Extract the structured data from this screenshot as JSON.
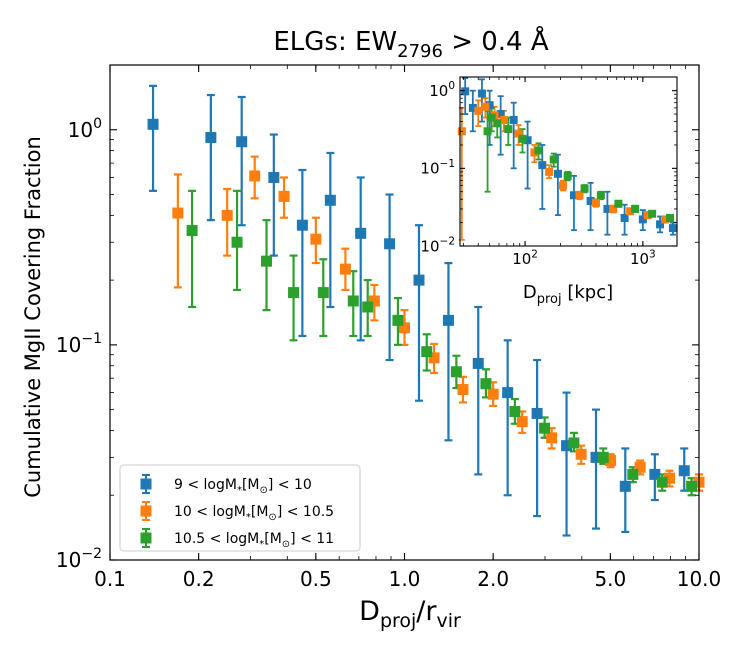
{
  "chart_data": [
    {
      "type": "scatter",
      "title": "ELGs: EW",
      "title_sub": "2796",
      "title_rest": " > 0.4 Å",
      "xlabel": "D",
      "xlabel_sub": "proj",
      "xlabel_mid": "/r",
      "xlabel_sub2": "vir",
      "ylabel": "Cumulative MgII Covering Fraction",
      "xscale": "log",
      "yscale": "log",
      "xlim": [
        0.1,
        10.0
      ],
      "ylim": [
        0.01,
        2.0
      ],
      "xticks": [
        {
          "value": 0.1,
          "label": "0.1"
        },
        {
          "value": 0.2,
          "label": "0.2"
        },
        {
          "value": 0.5,
          "label": "0.5"
        },
        {
          "value": 1.0,
          "label": "1.0"
        },
        {
          "value": 2.0,
          "label": "2.0"
        },
        {
          "value": 5.0,
          "label": "5.0"
        },
        {
          "value": 10.0,
          "label": "10.0"
        }
      ],
      "yticks": [
        {
          "value": 1,
          "base": "10",
          "exp": "0"
        },
        {
          "value": 0.1,
          "base": "10",
          "exp": "−1"
        },
        {
          "value": 0.01,
          "base": "10",
          "exp": "−2"
        }
      ],
      "legend_position": "lower-left",
      "series": [
        {
          "name_pre": "9 < logM",
          "name_sub1": "*",
          "name_mid": "[M",
          "name_sub2": "⊙",
          "name_post": "] < 10",
          "color": "#1f77b4",
          "points": [
            {
              "x": 0.14,
              "y": 1.06,
              "ylo": 0.52,
              "yhi": 1.6
            },
            {
              "x": 0.22,
              "y": 0.92,
              "ylo": 0.38,
              "yhi": 1.45
            },
            {
              "x": 0.28,
              "y": 0.88,
              "ylo": 0.36,
              "yhi": 1.42
            },
            {
              "x": 0.36,
              "y": 0.6,
              "ylo": 0.26,
              "yhi": 0.95
            },
            {
              "x": 0.45,
              "y": 0.36,
              "ylo": 0.11,
              "yhi": 0.65
            },
            {
              "x": 0.56,
              "y": 0.47,
              "ylo": 0.15,
              "yhi": 0.78
            },
            {
              "x": 0.71,
              "y": 0.33,
              "ylo": 0.105,
              "yhi": 0.6
            },
            {
              "x": 0.89,
              "y": 0.295,
              "ylo": 0.085,
              "yhi": 0.5
            },
            {
              "x": 1.12,
              "y": 0.2,
              "ylo": 0.055,
              "yhi": 0.36
            },
            {
              "x": 1.41,
              "y": 0.13,
              "ylo": 0.036,
              "yhi": 0.24
            },
            {
              "x": 1.78,
              "y": 0.082,
              "ylo": 0.025,
              "yhi": 0.15
            },
            {
              "x": 2.24,
              "y": 0.06,
              "ylo": 0.02,
              "yhi": 0.105
            },
            {
              "x": 2.82,
              "y": 0.048,
              "ylo": 0.016,
              "yhi": 0.085
            },
            {
              "x": 3.55,
              "y": 0.034,
              "ylo": 0.013,
              "yhi": 0.06
            },
            {
              "x": 4.47,
              "y": 0.03,
              "ylo": 0.014,
              "yhi": 0.05
            },
            {
              "x": 5.62,
              "y": 0.022,
              "ylo": 0.0135,
              "yhi": 0.033
            },
            {
              "x": 7.08,
              "y": 0.025,
              "ylo": 0.019,
              "yhi": 0.031
            },
            {
              "x": 8.91,
              "y": 0.026,
              "ylo": 0.021,
              "yhi": 0.033
            }
          ]
        },
        {
          "name_pre": "10 < logM",
          "name_sub1": "*",
          "name_mid": "[M",
          "name_sub2": "⊙",
          "name_post": "] < 10.5",
          "color": "#ff7f0e",
          "points": [
            {
              "x": 0.17,
              "y": 0.41,
              "ylo": 0.185,
              "yhi": 0.62
            },
            {
              "x": 0.25,
              "y": 0.4,
              "ylo": 0.26,
              "yhi": 0.53
            },
            {
              "x": 0.31,
              "y": 0.61,
              "ylo": 0.48,
              "yhi": 0.75
            },
            {
              "x": 0.39,
              "y": 0.49,
              "ylo": 0.39,
              "yhi": 0.6
            },
            {
              "x": 0.5,
              "y": 0.31,
              "ylo": 0.24,
              "yhi": 0.39
            },
            {
              "x": 0.63,
              "y": 0.225,
              "ylo": 0.18,
              "yhi": 0.28
            },
            {
              "x": 0.79,
              "y": 0.16,
              "ylo": 0.13,
              "yhi": 0.19
            },
            {
              "x": 1.0,
              "y": 0.12,
              "ylo": 0.1,
              "yhi": 0.145
            },
            {
              "x": 1.26,
              "y": 0.087,
              "ylo": 0.074,
              "yhi": 0.101
            },
            {
              "x": 1.58,
              "y": 0.062,
              "ylo": 0.054,
              "yhi": 0.071
            },
            {
              "x": 2.0,
              "y": 0.059,
              "ylo": 0.052,
              "yhi": 0.067
            },
            {
              "x": 2.51,
              "y": 0.044,
              "ylo": 0.039,
              "yhi": 0.049
            },
            {
              "x": 3.16,
              "y": 0.037,
              "ylo": 0.033,
              "yhi": 0.041
            },
            {
              "x": 3.98,
              "y": 0.031,
              "ylo": 0.028,
              "yhi": 0.034
            },
            {
              "x": 5.01,
              "y": 0.029,
              "ylo": 0.027,
              "yhi": 0.031
            },
            {
              "x": 6.31,
              "y": 0.027,
              "ylo": 0.025,
              "yhi": 0.029
            },
            {
              "x": 7.94,
              "y": 0.024,
              "ylo": 0.022,
              "yhi": 0.026
            },
            {
              "x": 10.0,
              "y": 0.023,
              "ylo": 0.021,
              "yhi": 0.025
            }
          ]
        },
        {
          "name_pre": "10.5 < logM",
          "name_sub1": "*",
          "name_mid": "[M",
          "name_sub2": "⊙",
          "name_post": "] < 11",
          "color": "#2ca02c",
          "points": [
            {
              "x": 0.19,
              "y": 0.34,
              "ylo": 0.15,
              "yhi": 0.52
            },
            {
              "x": 0.27,
              "y": 0.3,
              "ylo": 0.18,
              "yhi": 0.52
            },
            {
              "x": 0.34,
              "y": 0.245,
              "ylo": 0.145,
              "yhi": 0.38
            },
            {
              "x": 0.42,
              "y": 0.175,
              "ylo": 0.105,
              "yhi": 0.26
            },
            {
              "x": 0.53,
              "y": 0.175,
              "ylo": 0.11,
              "yhi": 0.25
            },
            {
              "x": 0.67,
              "y": 0.16,
              "ylo": 0.11,
              "yhi": 0.22
            },
            {
              "x": 0.75,
              "y": 0.15,
              "ylo": 0.11,
              "yhi": 0.2
            },
            {
              "x": 0.95,
              "y": 0.13,
              "ylo": 0.1,
              "yhi": 0.165
            },
            {
              "x": 1.19,
              "y": 0.093,
              "ylo": 0.076,
              "yhi": 0.112
            },
            {
              "x": 1.5,
              "y": 0.075,
              "ylo": 0.063,
              "yhi": 0.089
            },
            {
              "x": 1.89,
              "y": 0.066,
              "ylo": 0.057,
              "yhi": 0.077
            },
            {
              "x": 2.37,
              "y": 0.049,
              "ylo": 0.043,
              "yhi": 0.056
            },
            {
              "x": 2.99,
              "y": 0.041,
              "ylo": 0.037,
              "yhi": 0.046
            },
            {
              "x": 3.76,
              "y": 0.035,
              "ylo": 0.032,
              "yhi": 0.039
            },
            {
              "x": 4.73,
              "y": 0.03,
              "ylo": 0.028,
              "yhi": 0.033
            },
            {
              "x": 5.96,
              "y": 0.025,
              "ylo": 0.023,
              "yhi": 0.027
            },
            {
              "x": 7.5,
              "y": 0.023,
              "ylo": 0.021,
              "yhi": 0.025
            },
            {
              "x": 9.44,
              "y": 0.022,
              "ylo": 0.02,
              "yhi": 0.024
            }
          ]
        }
      ]
    },
    {
      "type": "scatter",
      "inset": true,
      "xlabel": "D",
      "xlabel_sub": "proj",
      "xlabel_unit": " [kpc]",
      "xscale": "log",
      "yscale": "log",
      "xlim": [
        28,
        1950
      ],
      "ylim": [
        0.01,
        1.5
      ],
      "xticks": [
        {
          "value": 100,
          "base": "10",
          "exp": "2"
        },
        {
          "value": 1000,
          "base": "10",
          "exp": "3"
        }
      ],
      "yticks": [
        {
          "value": 1,
          "base": "10",
          "exp": "0"
        },
        {
          "value": 0.1,
          "base": "10",
          "exp": "−1"
        },
        {
          "value": 0.01,
          "base": "10",
          "exp": "−2"
        }
      ],
      "series": [
        {
          "color": "#1f77b4",
          "points": [
            {
              "x": 31,
              "y": 0.98,
              "ylo": 0.5,
              "yhi": 1.45
            },
            {
              "x": 36,
              "y": 0.6,
              "ylo": 0.3,
              "yhi": 1.0
            },
            {
              "x": 43,
              "y": 0.92,
              "ylo": 0.4,
              "yhi": 1.4
            },
            {
              "x": 50,
              "y": 0.65,
              "ylo": 0.2,
              "yhi": 1.0
            },
            {
              "x": 62,
              "y": 0.5,
              "ylo": 0.15,
              "yhi": 0.85
            },
            {
              "x": 80,
              "y": 0.42,
              "ylo": 0.1,
              "yhi": 0.7
            },
            {
              "x": 105,
              "y": 0.23,
              "ylo": 0.055,
              "yhi": 0.4
            },
            {
              "x": 140,
              "y": 0.11,
              "ylo": 0.03,
              "yhi": 0.2
            },
            {
              "x": 190,
              "y": 0.085,
              "ylo": 0.025,
              "yhi": 0.15
            },
            {
              "x": 260,
              "y": 0.045,
              "ylo": 0.016,
              "yhi": 0.08
            },
            {
              "x": 360,
              "y": 0.038,
              "ylo": 0.016,
              "yhi": 0.065
            },
            {
              "x": 500,
              "y": 0.03,
              "ylo": 0.014,
              "yhi": 0.05
            },
            {
              "x": 700,
              "y": 0.023,
              "ylo": 0.014,
              "yhi": 0.034
            },
            {
              "x": 1000,
              "y": 0.022,
              "ylo": 0.016,
              "yhi": 0.029
            },
            {
              "x": 1400,
              "y": 0.019,
              "ylo": 0.015,
              "yhi": 0.024
            },
            {
              "x": 1800,
              "y": 0.017,
              "ylo": 0.014,
              "yhi": 0.02
            }
          ]
        },
        {
          "color": "#ff7f0e",
          "points": [
            {
              "x": 29,
              "y": 0.3,
              "ylo": 0.012,
              "yhi": 0.6
            },
            {
              "x": 40,
              "y": 0.55,
              "ylo": 0.35,
              "yhi": 0.75
            },
            {
              "x": 46,
              "y": 0.62,
              "ylo": 0.45,
              "yhi": 0.8
            },
            {
              "x": 55,
              "y": 0.48,
              "ylo": 0.35,
              "yhi": 0.62
            },
            {
              "x": 66,
              "y": 0.42,
              "ylo": 0.3,
              "yhi": 0.55
            },
            {
              "x": 88,
              "y": 0.28,
              "ylo": 0.2,
              "yhi": 0.36
            },
            {
              "x": 120,
              "y": 0.16,
              "ylo": 0.12,
              "yhi": 0.2
            },
            {
              "x": 160,
              "y": 0.09,
              "ylo": 0.075,
              "yhi": 0.11
            },
            {
              "x": 210,
              "y": 0.06,
              "ylo": 0.052,
              "yhi": 0.069
            },
            {
              "x": 290,
              "y": 0.045,
              "ylo": 0.04,
              "yhi": 0.05
            },
            {
              "x": 400,
              "y": 0.036,
              "ylo": 0.032,
              "yhi": 0.04
            },
            {
              "x": 560,
              "y": 0.03,
              "ylo": 0.027,
              "yhi": 0.033
            },
            {
              "x": 780,
              "y": 0.028,
              "ylo": 0.026,
              "yhi": 0.03
            },
            {
              "x": 1100,
              "y": 0.025,
              "ylo": 0.023,
              "yhi": 0.027
            },
            {
              "x": 1550,
              "y": 0.022,
              "ylo": 0.02,
              "yhi": 0.024
            }
          ]
        },
        {
          "color": "#2ca02c",
          "points": [
            {
              "x": 48,
              "y": 0.3,
              "ylo": 0.05,
              "yhi": 0.55
            },
            {
              "x": 52,
              "y": 0.45,
              "ylo": 0.3,
              "yhi": 0.6
            },
            {
              "x": 58,
              "y": 0.38,
              "ylo": 0.25,
              "yhi": 0.52
            },
            {
              "x": 72,
              "y": 0.32,
              "ylo": 0.2,
              "yhi": 0.45
            },
            {
              "x": 95,
              "y": 0.24,
              "ylo": 0.16,
              "yhi": 0.32
            },
            {
              "x": 130,
              "y": 0.17,
              "ylo": 0.13,
              "yhi": 0.21
            },
            {
              "x": 175,
              "y": 0.13,
              "ylo": 0.105,
              "yhi": 0.155
            },
            {
              "x": 230,
              "y": 0.08,
              "ylo": 0.07,
              "yhi": 0.09
            },
            {
              "x": 320,
              "y": 0.055,
              "ylo": 0.049,
              "yhi": 0.061
            },
            {
              "x": 440,
              "y": 0.045,
              "ylo": 0.04,
              "yhi": 0.05
            },
            {
              "x": 620,
              "y": 0.035,
              "ylo": 0.032,
              "yhi": 0.038
            },
            {
              "x": 860,
              "y": 0.03,
              "ylo": 0.028,
              "yhi": 0.033
            },
            {
              "x": 1200,
              "y": 0.026,
              "ylo": 0.024,
              "yhi": 0.028
            },
            {
              "x": 1700,
              "y": 0.023,
              "ylo": 0.021,
              "yhi": 0.025
            }
          ]
        }
      ]
    }
  ]
}
